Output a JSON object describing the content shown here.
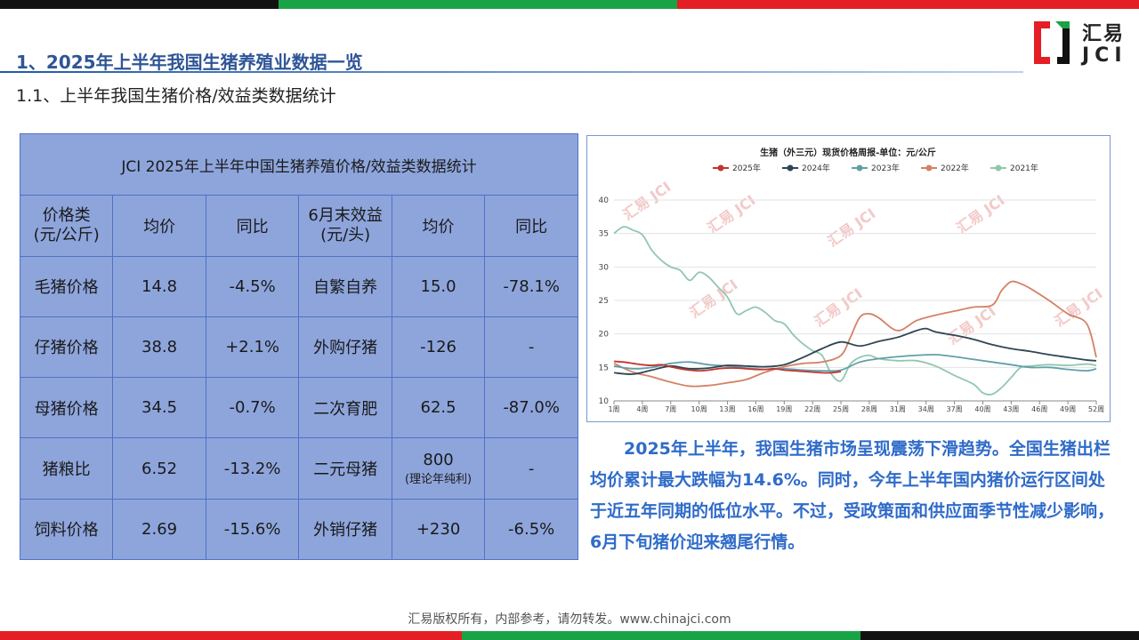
{
  "header": {
    "title": "1、2025年上半年我国生猪养殖业数据一览",
    "subtitle": "1.1、上半年我国生猪价格/效益类数据统计"
  },
  "logo": {
    "line1": "汇易",
    "line2": "JCI"
  },
  "colors": {
    "accent": "#2f5597",
    "red": "#e31e24",
    "green": "#1aa346",
    "black": "#111111",
    "table_bg": "#8ea5dc",
    "paragraph": "#2f6bc9"
  },
  "table": {
    "title": "JCI 2025年上半年中国生猪养殖价格/效益类数据统计",
    "headers": [
      "价格类\n(元/公斤)",
      "均价",
      "同比",
      "6月末效益\n(元/头)",
      "均价",
      "同比"
    ],
    "rows": [
      [
        "毛猪价格",
        "14.8",
        "-4.5%",
        "自繁自养",
        "15.0",
        "-78.1%"
      ],
      [
        "仔猪价格",
        "38.8",
        "+2.1%",
        "外购仔猪",
        "-126",
        "-"
      ],
      [
        "母猪价格",
        "34.5",
        "-0.7%",
        "二次育肥",
        "62.5",
        "-87.0%"
      ],
      [
        "猪粮比",
        "6.52",
        "-13.2%",
        "二元母猪",
        "800",
        "-"
      ],
      [
        "饲料价格",
        "2.69",
        "-15.6%",
        "外销仔猪",
        "+230",
        "-6.5%"
      ]
    ],
    "note": "(理论年纯利)"
  },
  "chart_data": {
    "type": "line",
    "title": "生猪（外三元）现货价格周报-单位：元/公斤",
    "xlabel": "",
    "ylabel": "",
    "ylim": [
      10,
      40
    ],
    "yticks": [
      "10",
      "15",
      "20",
      "25",
      "30",
      "35",
      "40"
    ],
    "xticks": [
      "1周",
      "4周",
      "7周",
      "10周",
      "13周",
      "16周",
      "19周",
      "22周",
      "25周",
      "28周",
      "31周",
      "34周",
      "37周",
      "40周",
      "43周",
      "46周",
      "49周",
      "52周"
    ],
    "legend_position": "top",
    "watermark": "汇易 JCI",
    "series": [
      {
        "name": "2025年",
        "color": "#c23531",
        "x": [
          1,
          2,
          3,
          4,
          5,
          6,
          7,
          8,
          9,
          10,
          11,
          12,
          13,
          14,
          15,
          16,
          17,
          18,
          19,
          20,
          21,
          22,
          23,
          24,
          25
        ],
        "values": [
          15.9,
          15.8,
          15.6,
          15.4,
          15.3,
          15.4,
          15.1,
          14.8,
          14.6,
          14.5,
          14.6,
          14.8,
          14.9,
          14.9,
          14.8,
          14.7,
          14.7,
          14.8,
          14.6,
          14.5,
          14.4,
          14.3,
          14.2,
          14.2,
          14.4
        ]
      },
      {
        "name": "2024年",
        "color": "#2f4554",
        "x": [
          1,
          3,
          5,
          7,
          9,
          11,
          13,
          15,
          17,
          19,
          21,
          23,
          25,
          27,
          29,
          31,
          33,
          34,
          35,
          37,
          39,
          41,
          43,
          45,
          47,
          49,
          51,
          52
        ],
        "values": [
          14.2,
          14.0,
          14.6,
          15.2,
          14.8,
          14.9,
          15.3,
          15.2,
          15.1,
          15.4,
          16.5,
          17.8,
          18.8,
          18.2,
          18.9,
          19.5,
          20.5,
          20.8,
          20.3,
          19.8,
          19.2,
          18.4,
          17.8,
          17.4,
          16.9,
          16.5,
          16.1,
          16.0
        ]
      },
      {
        "name": "2023年",
        "color": "#61a0a8",
        "x": [
          1,
          3,
          5,
          7,
          9,
          11,
          13,
          15,
          17,
          19,
          21,
          23,
          25,
          27,
          29,
          31,
          33,
          35,
          37,
          39,
          41,
          43,
          45,
          47,
          49,
          51,
          52
        ],
        "values": [
          15.2,
          14.8,
          15.0,
          15.6,
          15.8,
          15.4,
          15.2,
          14.9,
          14.7,
          14.8,
          14.6,
          14.5,
          14.6,
          15.8,
          16.3,
          16.6,
          16.8,
          16.9,
          16.6,
          16.2,
          15.8,
          15.4,
          15.0,
          15.0,
          14.7,
          14.5,
          14.8
        ]
      },
      {
        "name": "2022年",
        "color": "#d48265",
        "x": [
          1,
          3,
          5,
          7,
          9,
          11,
          13,
          15,
          17,
          19,
          21,
          23,
          25,
          26,
          27,
          28,
          29,
          31,
          33,
          35,
          37,
          39,
          41,
          42,
          43,
          44,
          45,
          47,
          49,
          51,
          52
        ],
        "values": [
          15.6,
          14.3,
          13.6,
          12.8,
          12.2,
          12.3,
          12.7,
          13.2,
          14.3,
          15.1,
          15.6,
          15.8,
          16.8,
          19.5,
          22.5,
          23.0,
          22.4,
          20.5,
          22.0,
          22.8,
          23.4,
          24.0,
          24.3,
          26.5,
          27.8,
          27.5,
          26.8,
          25.0,
          23.0,
          21.5,
          16.5
        ]
      },
      {
        "name": "2021年",
        "color": "#91c7ae",
        "x": [
          1,
          2,
          3,
          4,
          5,
          6,
          7,
          8,
          9,
          10,
          11,
          12,
          13,
          14,
          15,
          16,
          17,
          18,
          19,
          20,
          21,
          22,
          23,
          24,
          25,
          26,
          27,
          28,
          29,
          31,
          33,
          35,
          37,
          39,
          40,
          41,
          42,
          43,
          44,
          45,
          47,
          49,
          51,
          52
        ],
        "values": [
          35.0,
          36.0,
          35.5,
          34.8,
          32.5,
          31.0,
          30.0,
          29.5,
          28.0,
          29.2,
          28.5,
          27.0,
          25.5,
          23.0,
          23.5,
          24.0,
          23.2,
          22.0,
          21.5,
          19.8,
          18.5,
          17.5,
          16.8,
          14.0,
          13.0,
          15.5,
          16.5,
          16.8,
          16.3,
          16.0,
          16.0,
          15.2,
          13.8,
          12.5,
          11.2,
          11.0,
          12.0,
          13.5,
          15.0,
          15.2,
          15.4,
          15.3,
          15.5,
          15.3
        ]
      }
    ]
  },
  "paragraph": "2025年上半年，我国生猪市场呈现震荡下滑趋势。全国生猪出栏均价累计最大跌幅为14.6%。同时，今年上半年国内猪价运行区间处于近五年同期的低位水平。不过，受政策面和供应面季节性减少影响，6月下旬猪价迎来翘尾行情。",
  "footer": "汇易版权所有，内部参考，请勿转发。www.chinajci.com"
}
